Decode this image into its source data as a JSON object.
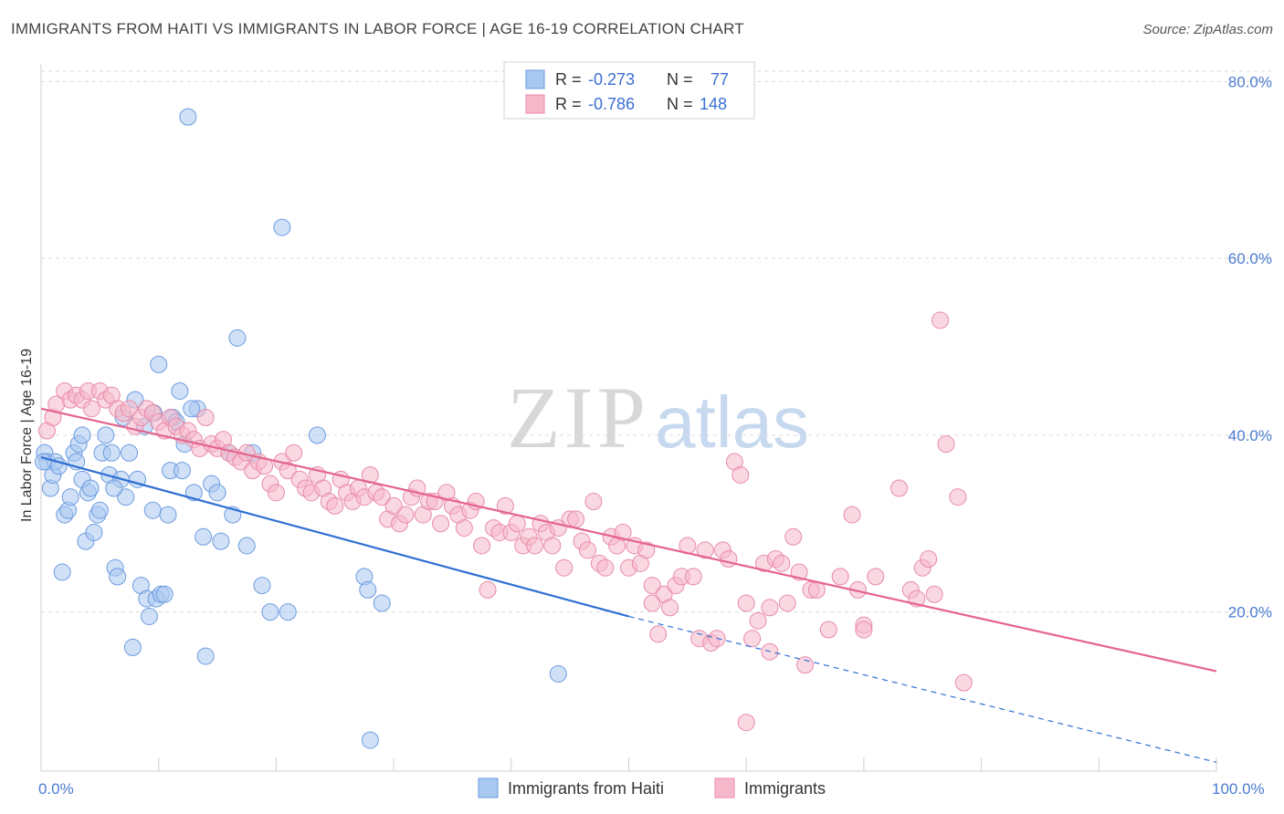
{
  "title": "IMMIGRANTS FROM HAITI VS IMMIGRANTS IN LABOR FORCE | AGE 16-19 CORRELATION CHART",
  "source": "Source: ZipAtlas.com",
  "watermark": {
    "zip": "ZIP",
    "atlas": "atlas"
  },
  "legend_top": [
    {
      "r_label": "R =",
      "r_value": "-0.273",
      "n_label": "N =",
      "n_value": "77"
    },
    {
      "r_label": "R =",
      "r_value": "-0.786",
      "n_label": "N =",
      "n_value": "148"
    }
  ],
  "colors": {
    "blue_fill": "#a9c8f0",
    "blue_stroke": "#6b9be0",
    "blue_line": "#2f6fd3",
    "pink_fill": "#f6b8cb",
    "pink_stroke": "#e88aa8",
    "pink_line": "#e4648e",
    "grid": "#d9d9d9",
    "tick_text": "#4b7bd1"
  },
  "chart_data": {
    "type": "scatter",
    "title": "IMMIGRANTS FROM HAITI VS IMMIGRANTS IN LABOR FORCE | AGE 16-19 CORRELATION CHART",
    "xlabel": "",
    "ylabel": "In Labor Force | Age 16-19",
    "xlim": [
      0,
      100
    ],
    "ylim": [
      2,
      82
    ],
    "x_tick_labels": [
      "0.0%",
      "100.0%"
    ],
    "y_ticks": [
      20,
      40,
      60,
      80
    ],
    "y_tick_labels": [
      "20.0%",
      "40.0%",
      "60.0%",
      "80.0%"
    ],
    "grid": true,
    "legend_position": "top-center",
    "series": [
      {
        "name": "Immigrants from Haiti",
        "r": -0.273,
        "n": 77,
        "trend": {
          "x0": 0,
          "y0": 37.5,
          "x1": 50,
          "y1": 19.5,
          "dashed_to_x": 100,
          "dashed_to_y": 3.0
        },
        "points": [
          [
            0.3,
            38
          ],
          [
            0.5,
            37
          ],
          [
            0.8,
            34
          ],
          [
            1,
            35.5
          ],
          [
            1.2,
            37
          ],
          [
            1.5,
            36.5
          ],
          [
            2,
            31
          ],
          [
            2.3,
            31.5
          ],
          [
            2.5,
            33
          ],
          [
            2.8,
            38
          ],
          [
            3,
            37
          ],
          [
            3.2,
            39
          ],
          [
            3.5,
            40
          ],
          [
            3.5,
            35
          ],
          [
            3.8,
            28
          ],
          [
            4,
            33.5
          ],
          [
            4.2,
            34
          ],
          [
            4.5,
            29
          ],
          [
            4.8,
            31
          ],
          [
            5,
            31.5
          ],
          [
            5.2,
            38
          ],
          [
            5.5,
            40
          ],
          [
            5.8,
            35.5
          ],
          [
            6,
            38
          ],
          [
            6.3,
            25
          ],
          [
            6.5,
            24
          ],
          [
            6.8,
            35
          ],
          [
            7,
            42
          ],
          [
            7.2,
            33
          ],
          [
            7.5,
            38
          ],
          [
            7.8,
            16
          ],
          [
            8,
            44
          ],
          [
            8.2,
            35
          ],
          [
            8.5,
            23
          ],
          [
            8.8,
            41
          ],
          [
            9,
            21.5
          ],
          [
            9.2,
            19.5
          ],
          [
            9.5,
            31.5
          ],
          [
            9.8,
            21.5
          ],
          [
            10,
            48
          ],
          [
            10.2,
            22
          ],
          [
            10.5,
            22
          ],
          [
            10.8,
            31
          ],
          [
            11,
            36
          ],
          [
            11.2,
            42
          ],
          [
            11.5,
            41.5
          ],
          [
            11.8,
            45
          ],
          [
            12,
            36
          ],
          [
            12.2,
            39
          ],
          [
            12.5,
            76
          ],
          [
            13,
            33.5
          ],
          [
            13.3,
            43
          ],
          [
            13.8,
            28.5
          ],
          [
            14,
            15
          ],
          [
            14.5,
            34.5
          ],
          [
            15,
            33.5
          ],
          [
            15.3,
            28
          ],
          [
            16,
            38
          ],
          [
            16.3,
            31
          ],
          [
            16.7,
            51
          ],
          [
            17.5,
            27.5
          ],
          [
            18,
            38
          ],
          [
            18.8,
            23
          ],
          [
            19.5,
            20
          ],
          [
            20.5,
            63.5
          ],
          [
            21,
            20
          ],
          [
            23.5,
            40
          ],
          [
            27.5,
            24
          ],
          [
            27.8,
            22.5
          ],
          [
            28,
            5.5
          ],
          [
            29,
            21
          ],
          [
            44,
            13
          ],
          [
            0.2,
            37
          ],
          [
            1.8,
            24.5
          ],
          [
            6.2,
            34
          ],
          [
            9.6,
            42.5
          ],
          [
            12.8,
            43
          ]
        ]
      },
      {
        "name": "Immigrants",
        "r": -0.786,
        "n": 148,
        "trend": {
          "x0": 0,
          "y0": 43,
          "x1": 100,
          "y1": 13.3
        },
        "points": [
          [
            0.5,
            40.5
          ],
          [
            1,
            42
          ],
          [
            1.3,
            43.5
          ],
          [
            2,
            45
          ],
          [
            2.5,
            44
          ],
          [
            3,
            44.5
          ],
          [
            3.5,
            44
          ],
          [
            4,
            45
          ],
          [
            4.3,
            43
          ],
          [
            5,
            45
          ],
          [
            5.5,
            44
          ],
          [
            6,
            44.5
          ],
          [
            6.5,
            43
          ],
          [
            7,
            42.5
          ],
          [
            7.5,
            43
          ],
          [
            8,
            41
          ],
          [
            8.5,
            42
          ],
          [
            9,
            43
          ],
          [
            9.5,
            42.5
          ],
          [
            10,
            41.5
          ],
          [
            10.5,
            40.5
          ],
          [
            11,
            42
          ],
          [
            11.5,
            41
          ],
          [
            12,
            40
          ],
          [
            12.5,
            40.5
          ],
          [
            13,
            39.5
          ],
          [
            13.5,
            38.5
          ],
          [
            14,
            42
          ],
          [
            14.5,
            39
          ],
          [
            15,
            38.5
          ],
          [
            15.5,
            39.5
          ],
          [
            16,
            38
          ],
          [
            16.5,
            37.5
          ],
          [
            17,
            37
          ],
          [
            17.5,
            38
          ],
          [
            18,
            36
          ],
          [
            18.5,
            37
          ],
          [
            19,
            36.5
          ],
          [
            19.5,
            34.5
          ],
          [
            20,
            33.5
          ],
          [
            20.5,
            37
          ],
          [
            21,
            36
          ],
          [
            21.5,
            38
          ],
          [
            22,
            35
          ],
          [
            22.5,
            34
          ],
          [
            23,
            33.5
          ],
          [
            23.5,
            35.5
          ],
          [
            24,
            34
          ],
          [
            24.5,
            32.5
          ],
          [
            25,
            32
          ],
          [
            25.5,
            35
          ],
          [
            26,
            33.5
          ],
          [
            26.5,
            32.5
          ],
          [
            27,
            34
          ],
          [
            27.5,
            33
          ],
          [
            28,
            35.5
          ],
          [
            28.5,
            33.5
          ],
          [
            29,
            33
          ],
          [
            29.5,
            30.5
          ],
          [
            30,
            32
          ],
          [
            30.5,
            30
          ],
          [
            31,
            31
          ],
          [
            31.5,
            33
          ],
          [
            32,
            34
          ],
          [
            32.5,
            31
          ],
          [
            33,
            32.5
          ],
          [
            33.5,
            32.5
          ],
          [
            34,
            30
          ],
          [
            34.5,
            33.5
          ],
          [
            35,
            32
          ],
          [
            35.5,
            31
          ],
          [
            36,
            29.5
          ],
          [
            36.5,
            31.5
          ],
          [
            37,
            32.5
          ],
          [
            37.5,
            27.5
          ],
          [
            38,
            22.5
          ],
          [
            38.5,
            29.5
          ],
          [
            39,
            29
          ],
          [
            39.5,
            32
          ],
          [
            40,
            29
          ],
          [
            40.5,
            30
          ],
          [
            41,
            27.5
          ],
          [
            41.5,
            28.5
          ],
          [
            42,
            27.5
          ],
          [
            42.5,
            30
          ],
          [
            43,
            29
          ],
          [
            43.5,
            27.5
          ],
          [
            44,
            29.5
          ],
          [
            44.5,
            25
          ],
          [
            45,
            30.5
          ],
          [
            45.5,
            30.5
          ],
          [
            46,
            28
          ],
          [
            46.5,
            27
          ],
          [
            47,
            32.5
          ],
          [
            47.5,
            25.5
          ],
          [
            48,
            25
          ],
          [
            48.5,
            28.5
          ],
          [
            49,
            27.5
          ],
          [
            49.5,
            29
          ],
          [
            50,
            25
          ],
          [
            50.5,
            27.5
          ],
          [
            51,
            25.5
          ],
          [
            51.5,
            27
          ],
          [
            52,
            23
          ],
          [
            52.5,
            17.5
          ],
          [
            53,
            22
          ],
          [
            53.5,
            20.5
          ],
          [
            54,
            23
          ],
          [
            54.5,
            24
          ],
          [
            55,
            27.5
          ],
          [
            55.5,
            24
          ],
          [
            56,
            17
          ],
          [
            56.5,
            27
          ],
          [
            57,
            16.5
          ],
          [
            57.5,
            17
          ],
          [
            58,
            27
          ],
          [
            58.5,
            26
          ],
          [
            59,
            37
          ],
          [
            59.5,
            35.5
          ],
          [
            60,
            21
          ],
          [
            60.5,
            17
          ],
          [
            61,
            19
          ],
          [
            61.5,
            25.5
          ],
          [
            62,
            15.5
          ],
          [
            62.5,
            26
          ],
          [
            63,
            25.5
          ],
          [
            63.5,
            21
          ],
          [
            64,
            28.5
          ],
          [
            64.5,
            24.5
          ],
          [
            65,
            14
          ],
          [
            65.5,
            22.5
          ],
          [
            66,
            22.5
          ],
          [
            67,
            18
          ],
          [
            68,
            24
          ],
          [
            69,
            31
          ],
          [
            70,
            18.5
          ],
          [
            71,
            24
          ],
          [
            73,
            34
          ],
          [
            74,
            22.5
          ],
          [
            75,
            25
          ],
          [
            75.5,
            26
          ],
          [
            76,
            22
          ],
          [
            76.5,
            53
          ],
          [
            77,
            39
          ],
          [
            78,
            33
          ],
          [
            78.5,
            12
          ],
          [
            60,
            7.5
          ],
          [
            52,
            21
          ],
          [
            70,
            18
          ],
          [
            74.5,
            21.5
          ],
          [
            62,
            20.5
          ],
          [
            69.5,
            22.5
          ]
        ]
      }
    ]
  },
  "bottom_legend": [
    "Immigrants from Haiti",
    "Immigrants"
  ]
}
